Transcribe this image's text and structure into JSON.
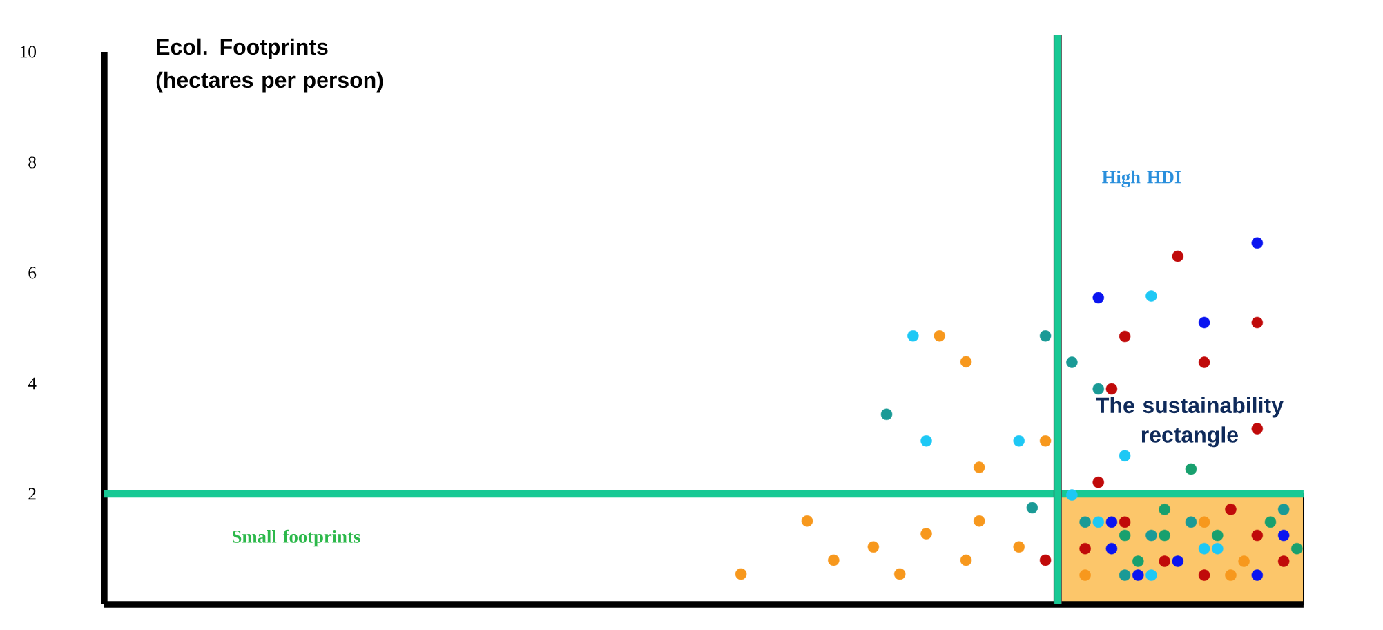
{
  "chart_data": {
    "type": "scatter",
    "ylabel": "Ecol. Footprints (hectares per person)",
    "annotations": [
      "High HDI",
      "The sustainability rectangle",
      "Small footprints"
    ],
    "categories": [
      null,
      null,
      null,
      null,
      null,
      null,
      null,
      null,
      null,
      null,
      null,
      null,
      null,
      null,
      null,
      null,
      null,
      null,
      null,
      null,
      null,
      null,
      null,
      null,
      null,
      null,
      null,
      null,
      null,
      null,
      null,
      null,
      null,
      null,
      null,
      null,
      null,
      null,
      null,
      null,
      null,
      null,
      null,
      null,
      null,
      null,
      null,
      null,
      null,
      null,
      null,
      null,
      null,
      null,
      null,
      null,
      null,
      null,
      null,
      null,
      null,
      null,
      null,
      null,
      null,
      null,
      null,
      null,
      null,
      null,
      null,
      null,
      null,
      null,
      null,
      null,
      null,
      null,
      null,
      null,
      null,
      null,
      null,
      null,
      null,
      null,
      null,
      null,
      null,
      null,
      null
    ],
    "ylim": [
      0,
      10
    ],
    "yticks": [
      2,
      4,
      6,
      8,
      10
    ],
    "tick_labels": "y",
    "grid": false,
    "ref_lines": [
      {
        "axis": "y",
        "value": 2,
        "color": "#17c994"
      }
    ],
    "series": [
      {
        "color": "#f7981d",
        "values": [
          null,
          null,
          null,
          null,
          null,
          null,
          null,
          null,
          null,
          null,
          null,
          null,
          null,
          null,
          null,
          null,
          null,
          null,
          null,
          null,
          null,
          null,
          null,
          null,
          null,
          null,
          null,
          null,
          null,
          null,
          null,
          null,
          null,
          null,
          null,
          null,
          null,
          null,
          null,
          null,
          null,
          null,
          null,
          null,
          null,
          null,
          null,
          null,
          0.55,
          null,
          null,
          null,
          null,
          1.51,
          null,
          0.8,
          null,
          null,
          1.04,
          null,
          0.55,
          null,
          1.28,
          4.86,
          null,
          4.39,
          2.48,
          null,
          null,
          1.04,
          null,
          2.96,
          null,
          null,
          0.53,
          null,
          null,
          null,
          null,
          null,
          null,
          null,
          null,
          1.49,
          null,
          0.53,
          0.78,
          null,
          null,
          null,
          null
        ]
      },
      {
        "color": "#f7981d",
        "values": [
          null,
          null,
          null,
          null,
          null,
          null,
          null,
          null,
          null,
          null,
          null,
          null,
          null,
          null,
          null,
          null,
          null,
          null,
          null,
          null,
          null,
          null,
          null,
          null,
          null,
          null,
          null,
          null,
          null,
          null,
          null,
          null,
          null,
          null,
          null,
          null,
          null,
          null,
          null,
          null,
          null,
          null,
          null,
          null,
          null,
          null,
          null,
          null,
          null,
          null,
          null,
          null,
          null,
          null,
          null,
          null,
          null,
          null,
          null,
          null,
          null,
          null,
          null,
          null,
          null,
          0.8,
          1.51,
          null,
          null,
          null,
          null,
          null,
          null,
          null,
          null,
          null,
          null,
          null,
          null,
          null,
          null,
          null,
          null,
          null,
          null,
          null,
          null,
          null,
          null,
          null,
          null
        ]
      },
      {
        "color": "#1a9a96",
        "values": [
          null,
          null,
          null,
          null,
          null,
          null,
          null,
          null,
          null,
          null,
          null,
          null,
          null,
          null,
          null,
          null,
          null,
          null,
          null,
          null,
          null,
          null,
          null,
          null,
          null,
          null,
          null,
          null,
          null,
          null,
          null,
          null,
          null,
          null,
          null,
          null,
          null,
          null,
          null,
          null,
          null,
          null,
          null,
          null,
          null,
          null,
          null,
          null,
          null,
          null,
          null,
          null,
          null,
          null,
          null,
          null,
          null,
          null,
          null,
          3.44,
          null,
          null,
          null,
          null,
          null,
          null,
          null,
          null,
          null,
          null,
          1.75,
          4.86,
          null,
          4.38,
          1.49,
          3.9,
          null,
          0.53,
          null,
          1.25,
          null,
          null,
          1.49,
          null,
          null,
          null,
          null,
          null,
          null,
          1.72,
          null
        ]
      },
      {
        "color": "#1ec8f5",
        "values": [
          null,
          null,
          null,
          null,
          null,
          null,
          null,
          null,
          null,
          null,
          null,
          null,
          null,
          null,
          null,
          null,
          null,
          null,
          null,
          null,
          null,
          null,
          null,
          null,
          null,
          null,
          null,
          null,
          null,
          null,
          null,
          null,
          null,
          null,
          null,
          null,
          null,
          null,
          null,
          null,
          null,
          null,
          null,
          null,
          null,
          null,
          null,
          null,
          null,
          null,
          null,
          null,
          null,
          null,
          null,
          null,
          null,
          null,
          null,
          null,
          null,
          4.86,
          2.96,
          null,
          null,
          null,
          null,
          null,
          null,
          2.96,
          null,
          null,
          null,
          1.98,
          null,
          1.49,
          null,
          2.69,
          null,
          5.58,
          null,
          null,
          null,
          1.01,
          1.01,
          null,
          null,
          null,
          null,
          null,
          null
        ]
      },
      {
        "color": "#1ec8f5",
        "values": [
          null,
          null,
          null,
          null,
          null,
          null,
          null,
          null,
          null,
          null,
          null,
          null,
          null,
          null,
          null,
          null,
          null,
          null,
          null,
          null,
          null,
          null,
          null,
          null,
          null,
          null,
          null,
          null,
          null,
          null,
          null,
          null,
          null,
          null,
          null,
          null,
          null,
          null,
          null,
          null,
          null,
          null,
          null,
          null,
          null,
          null,
          null,
          null,
          null,
          null,
          null,
          null,
          null,
          null,
          null,
          null,
          null,
          null,
          null,
          null,
          null,
          null,
          null,
          null,
          null,
          null,
          null,
          null,
          null,
          null,
          null,
          null,
          null,
          null,
          null,
          null,
          null,
          null,
          null,
          0.53,
          null,
          null,
          null,
          null,
          null,
          null,
          null,
          null,
          null,
          null,
          null
        ]
      },
      {
        "color": "#0a14f0",
        "values": [
          null,
          null,
          null,
          null,
          null,
          null,
          null,
          null,
          null,
          null,
          null,
          null,
          null,
          null,
          null,
          null,
          null,
          null,
          null,
          null,
          null,
          null,
          null,
          null,
          null,
          null,
          null,
          null,
          null,
          null,
          null,
          null,
          null,
          null,
          null,
          null,
          null,
          null,
          null,
          null,
          null,
          null,
          null,
          null,
          null,
          null,
          null,
          null,
          null,
          null,
          null,
          null,
          null,
          null,
          null,
          null,
          null,
          null,
          null,
          null,
          null,
          null,
          null,
          null,
          null,
          null,
          null,
          null,
          null,
          null,
          null,
          null,
          null,
          null,
          null,
          5.55,
          1.49,
          null,
          0.53,
          null,
          null,
          0.78,
          null,
          5.1,
          null,
          null,
          null,
          6.54,
          null,
          1.25,
          null
        ]
      },
      {
        "color": "#0a14f0",
        "values": [
          null,
          null,
          null,
          null,
          null,
          null,
          null,
          null,
          null,
          null,
          null,
          null,
          null,
          null,
          null,
          null,
          null,
          null,
          null,
          null,
          null,
          null,
          null,
          null,
          null,
          null,
          null,
          null,
          null,
          null,
          null,
          null,
          null,
          null,
          null,
          null,
          null,
          null,
          null,
          null,
          null,
          null,
          null,
          null,
          null,
          null,
          null,
          null,
          null,
          null,
          null,
          null,
          null,
          null,
          null,
          null,
          null,
          null,
          null,
          null,
          null,
          null,
          null,
          null,
          null,
          null,
          null,
          null,
          null,
          null,
          null,
          null,
          null,
          null,
          null,
          null,
          1.01,
          null,
          null,
          null,
          null,
          null,
          null,
          null,
          null,
          null,
          null,
          0.53,
          null,
          null,
          null
        ]
      },
      {
        "color": "#c00a0a",
        "values": [
          null,
          null,
          null,
          null,
          null,
          null,
          null,
          null,
          null,
          null,
          null,
          null,
          null,
          null,
          null,
          null,
          null,
          null,
          null,
          null,
          null,
          null,
          null,
          null,
          null,
          null,
          null,
          null,
          null,
          null,
          null,
          null,
          null,
          null,
          null,
          null,
          null,
          null,
          null,
          null,
          null,
          null,
          null,
          null,
          null,
          null,
          null,
          null,
          null,
          null,
          null,
          null,
          null,
          null,
          null,
          null,
          null,
          null,
          null,
          null,
          null,
          null,
          null,
          null,
          null,
          null,
          null,
          null,
          null,
          null,
          null,
          0.8,
          null,
          null,
          1.01,
          2.21,
          3.9,
          4.85,
          null,
          null,
          0.78,
          6.3,
          null,
          4.38,
          null,
          1.72,
          null,
          5.1,
          null,
          0.78,
          null
        ]
      },
      {
        "color": "#c00a0a",
        "values": [
          null,
          null,
          null,
          null,
          null,
          null,
          null,
          null,
          null,
          null,
          null,
          null,
          null,
          null,
          null,
          null,
          null,
          null,
          null,
          null,
          null,
          null,
          null,
          null,
          null,
          null,
          null,
          null,
          null,
          null,
          null,
          null,
          null,
          null,
          null,
          null,
          null,
          null,
          null,
          null,
          null,
          null,
          null,
          null,
          null,
          null,
          null,
          null,
          null,
          null,
          null,
          null,
          null,
          null,
          null,
          null,
          null,
          null,
          null,
          null,
          null,
          null,
          null,
          null,
          null,
          null,
          null,
          null,
          null,
          null,
          null,
          null,
          null,
          null,
          null,
          null,
          null,
          1.49,
          null,
          null,
          null,
          null,
          null,
          0.53,
          null,
          null,
          null,
          3.18,
          null,
          null,
          null
        ]
      },
      {
        "color": "#c00a0a",
        "values": [
          null,
          null,
          null,
          null,
          null,
          null,
          null,
          null,
          null,
          null,
          null,
          null,
          null,
          null,
          null,
          null,
          null,
          null,
          null,
          null,
          null,
          null,
          null,
          null,
          null,
          null,
          null,
          null,
          null,
          null,
          null,
          null,
          null,
          null,
          null,
          null,
          null,
          null,
          null,
          null,
          null,
          null,
          null,
          null,
          null,
          null,
          null,
          null,
          null,
          null,
          null,
          null,
          null,
          null,
          null,
          null,
          null,
          null,
          null,
          null,
          null,
          null,
          null,
          null,
          null,
          null,
          null,
          null,
          null,
          null,
          null,
          null,
          null,
          null,
          null,
          null,
          null,
          null,
          null,
          null,
          null,
          null,
          null,
          null,
          null,
          null,
          null,
          1.25,
          null,
          null,
          null
        ]
      },
      {
        "color": "#18a06e",
        "values": [
          null,
          null,
          null,
          null,
          null,
          null,
          null,
          null,
          null,
          null,
          null,
          null,
          null,
          null,
          null,
          null,
          null,
          null,
          null,
          null,
          null,
          null,
          null,
          null,
          null,
          null,
          null,
          null,
          null,
          null,
          null,
          null,
          null,
          null,
          null,
          null,
          null,
          null,
          null,
          null,
          null,
          null,
          null,
          null,
          null,
          null,
          null,
          null,
          null,
          null,
          null,
          null,
          null,
          null,
          null,
          null,
          null,
          null,
          null,
          null,
          null,
          null,
          null,
          null,
          null,
          null,
          null,
          null,
          null,
          null,
          null,
          null,
          null,
          null,
          null,
          null,
          null,
          1.25,
          0.78,
          null,
          1.72,
          null,
          2.45,
          null,
          1.25,
          null,
          null,
          null,
          1.49,
          null,
          1.01
        ]
      },
      {
        "color": "#18a06e",
        "values": [
          null,
          null,
          null,
          null,
          null,
          null,
          null,
          null,
          null,
          null,
          null,
          null,
          null,
          null,
          null,
          null,
          null,
          null,
          null,
          null,
          null,
          null,
          null,
          null,
          null,
          null,
          null,
          null,
          null,
          null,
          null,
          null,
          null,
          null,
          null,
          null,
          null,
          null,
          null,
          null,
          null,
          null,
          null,
          null,
          null,
          null,
          null,
          null,
          null,
          null,
          null,
          null,
          null,
          null,
          null,
          null,
          null,
          null,
          null,
          null,
          null,
          null,
          null,
          null,
          null,
          null,
          null,
          null,
          null,
          null,
          null,
          null,
          null,
          null,
          null,
          null,
          null,
          null,
          null,
          null,
          1.25,
          null,
          null,
          null,
          null,
          null,
          null,
          null,
          null,
          null,
          null
        ]
      }
    ]
  }
}
